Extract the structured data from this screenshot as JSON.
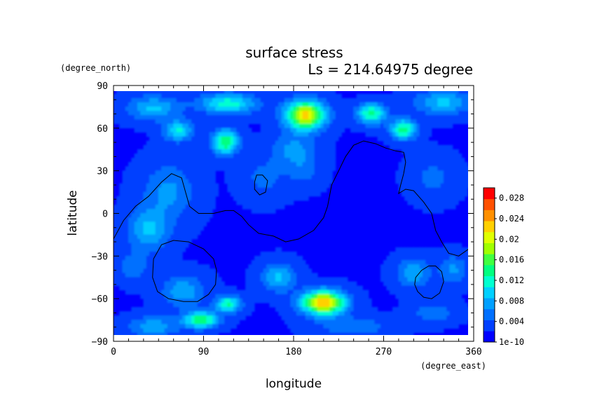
{
  "chart_data": {
    "type": "heatmap",
    "title": "surface stress",
    "subtitle": "Ls = 214.64975 degree",
    "xlabel": "longitude",
    "ylabel": "latitude",
    "xunit": "(degree_east)",
    "yunit": "(degree_north)",
    "xlim": [
      0,
      360
    ],
    "ylim": [
      -90,
      90
    ],
    "x_ticks": [
      "0",
      "90",
      "180",
      "270",
      "360"
    ],
    "y_ticks": [
      "90",
      "60",
      "30",
      "0",
      "−30",
      "−60",
      "−90"
    ],
    "x_tick_values": [
      0,
      90,
      180,
      270,
      360
    ],
    "y_tick_values": [
      90,
      60,
      30,
      0,
      -30,
      -60,
      -90
    ],
    "colorbar": {
      "min": 0,
      "max": 0.03,
      "labels": [
        "0.028",
        "0.024",
        "0.02",
        "0.016",
        "0.012",
        "0.008",
        "0.004",
        "1e-10"
      ],
      "label_values": [
        0.028,
        0.024,
        0.02,
        0.016,
        0.012,
        0.008,
        0.004,
        0
      ],
      "colors": [
        "#0000ff",
        "#0040ff",
        "#0070ff",
        "#00a0ff",
        "#00d0ff",
        "#00ffd0",
        "#00ff80",
        "#40ff40",
        "#a0ff00",
        "#e0ff00",
        "#ffd000",
        "#ff9000",
        "#ff5000",
        "#ff0000"
      ]
    },
    "background_value": 0.002,
    "hotspots": [
      {
        "lon": 192,
        "lat": 69,
        "value": 0.022,
        "sx": 14,
        "sy": 7
      },
      {
        "lon": 210,
        "lat": -63,
        "value": 0.023,
        "sx": 15,
        "sy": 6
      },
      {
        "lon": 115,
        "lat": 77,
        "value": 0.012,
        "sx": 20,
        "sy": 5
      },
      {
        "lon": 258,
        "lat": 70,
        "value": 0.014,
        "sx": 10,
        "sy": 5
      },
      {
        "lon": 290,
        "lat": 59,
        "value": 0.014,
        "sx": 9,
        "sy": 5
      },
      {
        "lon": 112,
        "lat": 50,
        "value": 0.015,
        "sx": 9,
        "sy": 6
      },
      {
        "lon": 65,
        "lat": 58,
        "value": 0.011,
        "sx": 10,
        "sy": 5
      },
      {
        "lon": 88,
        "lat": -75,
        "value": 0.015,
        "sx": 12,
        "sy": 4
      },
      {
        "lon": 115,
        "lat": -64,
        "value": 0.013,
        "sx": 9,
        "sy": 4
      },
      {
        "lon": 40,
        "lat": 74,
        "value": 0.009,
        "sx": 18,
        "sy": 6
      },
      {
        "lon": 180,
        "lat": 45,
        "value": 0.007,
        "sx": 15,
        "sy": 8
      },
      {
        "lon": 35,
        "lat": -12,
        "value": 0.009,
        "sx": 14,
        "sy": 10
      },
      {
        "lon": 55,
        "lat": 15,
        "value": 0.007,
        "sx": 18,
        "sy": 14
      },
      {
        "lon": 165,
        "lat": -45,
        "value": 0.009,
        "sx": 12,
        "sy": 7
      },
      {
        "lon": 70,
        "lat": -55,
        "value": 0.008,
        "sx": 15,
        "sy": 8
      },
      {
        "lon": 300,
        "lat": -42,
        "value": 0.008,
        "sx": 12,
        "sy": 7
      },
      {
        "lon": 340,
        "lat": -40,
        "value": 0.007,
        "sx": 10,
        "sy": 7
      },
      {
        "lon": 240,
        "lat": -80,
        "value": 0.006,
        "sx": 25,
        "sy": 5
      },
      {
        "lon": 40,
        "lat": -80,
        "value": 0.008,
        "sx": 18,
        "sy": 5
      },
      {
        "lon": 330,
        "lat": 78,
        "value": 0.009,
        "sx": 20,
        "sy": 6
      },
      {
        "lon": 150,
        "lat": 25,
        "value": 0.005,
        "sx": 15,
        "sy": 10
      },
      {
        "lon": 320,
        "lat": 25,
        "value": 0.005,
        "sx": 15,
        "sy": 10
      },
      {
        "lon": 20,
        "lat": -38,
        "value": 0.006,
        "sx": 10,
        "sy": 7
      },
      {
        "lon": 190,
        "lat": 30,
        "value": 0.005,
        "sx": 12,
        "sy": 8
      },
      {
        "lon": 320,
        "lat": -70,
        "value": 0.006,
        "sx": 15,
        "sy": 5
      }
    ],
    "contours": [
      [
        [
          0,
          -18
        ],
        [
          10,
          -5
        ],
        [
          22,
          5
        ],
        [
          35,
          12
        ],
        [
          48,
          22
        ],
        [
          58,
          28
        ],
        [
          68,
          25
        ],
        [
          72,
          15
        ],
        [
          76,
          5
        ],
        [
          85,
          0
        ],
        [
          100,
          0
        ],
        [
          112,
          2
        ],
        [
          120,
          2
        ],
        [
          128,
          -2
        ],
        [
          135,
          -8
        ],
        [
          145,
          -14
        ],
        [
          160,
          -16
        ],
        [
          172,
          -20
        ],
        [
          185,
          -18
        ],
        [
          200,
          -12
        ],
        [
          210,
          -3
        ],
        [
          214,
          5
        ],
        [
          218,
          20
        ],
        [
          225,
          30
        ],
        [
          232,
          40
        ],
        [
          240,
          48
        ],
        [
          250,
          51
        ],
        [
          262,
          49
        ],
        [
          272,
          46
        ],
        [
          282,
          44
        ],
        [
          290,
          43
        ],
        [
          292,
          36
        ],
        [
          290,
          28
        ],
        [
          287,
          20
        ],
        [
          285,
          14
        ],
        [
          292,
          17
        ],
        [
          300,
          16
        ],
        [
          310,
          8
        ],
        [
          318,
          0
        ],
        [
          322,
          -12
        ],
        [
          328,
          -20
        ],
        [
          335,
          -28
        ],
        [
          345,
          -30
        ],
        [
          355,
          -25
        ],
        [
          360,
          -22
        ]
      ],
      [
        [
          141,
          22
        ],
        [
          143,
          27
        ],
        [
          149,
          27
        ],
        [
          154,
          23
        ],
        [
          152,
          15
        ],
        [
          146,
          13
        ],
        [
          141,
          17
        ],
        [
          141,
          22
        ]
      ],
      [
        [
          40,
          -32
        ],
        [
          48,
          -22
        ],
        [
          60,
          -19
        ],
        [
          75,
          -20
        ],
        [
          90,
          -25
        ],
        [
          100,
          -32
        ],
        [
          103,
          -40
        ],
        [
          102,
          -50
        ],
        [
          95,
          -57
        ],
        [
          84,
          -62
        ],
        [
          70,
          -62
        ],
        [
          55,
          -60
        ],
        [
          44,
          -55
        ],
        [
          39,
          -45
        ],
        [
          40,
          -32
        ]
      ],
      [
        [
          302,
          -45
        ],
        [
          308,
          -40
        ],
        [
          315,
          -37
        ],
        [
          322,
          -37
        ],
        [
          328,
          -41
        ],
        [
          330,
          -48
        ],
        [
          326,
          -56
        ],
        [
          318,
          -60
        ],
        [
          310,
          -59
        ],
        [
          304,
          -55
        ],
        [
          301,
          -50
        ],
        [
          302,
          -45
        ]
      ]
    ]
  }
}
